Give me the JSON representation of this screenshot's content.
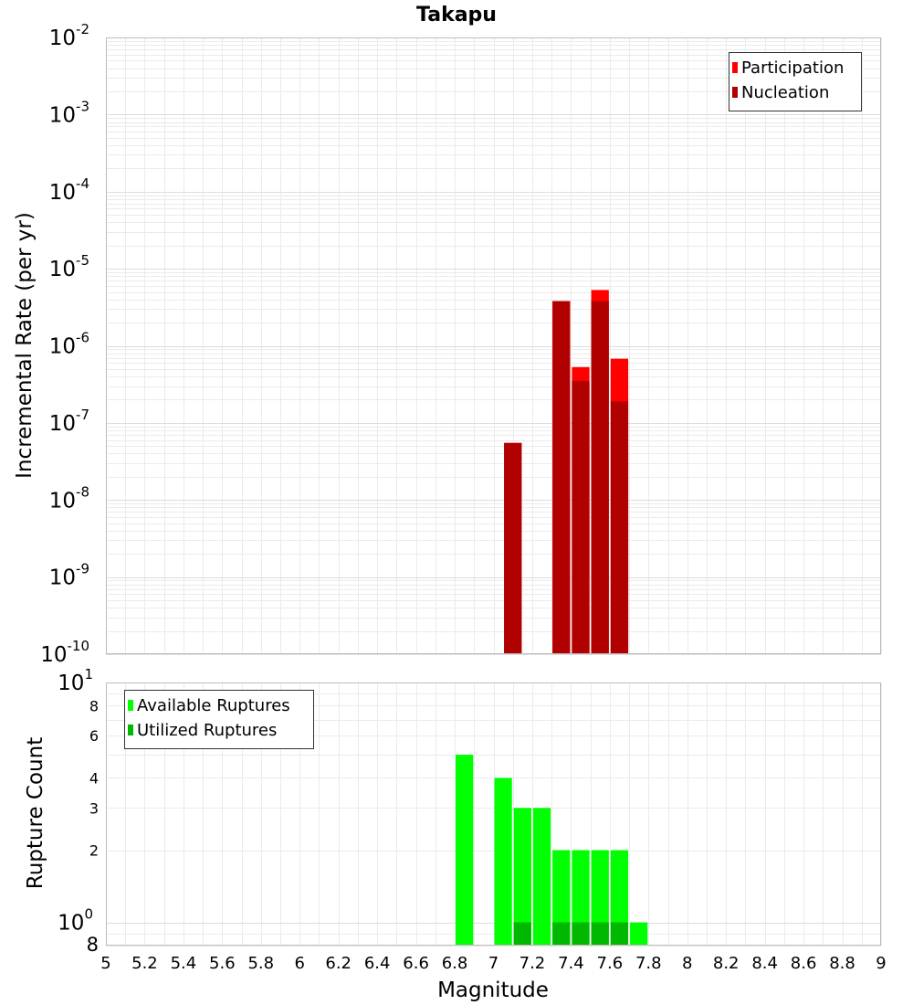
{
  "chart_data": {
    "type": "bar",
    "title": "Takapu",
    "xlabel": "Magnitude",
    "x_ticks": [
      "5",
      "5.2",
      "5.4",
      "5.6",
      "5.8",
      "6",
      "6.2",
      "6.4",
      "6.6",
      "6.8",
      "7",
      "7.2",
      "7.4",
      "7.6",
      "7.8",
      "8",
      "8.2",
      "8.4",
      "8.6",
      "8.8",
      "9"
    ],
    "xlim": [
      5,
      9
    ],
    "bin_width": 0.1,
    "panels": [
      {
        "ylabel": "Incremental Rate (per yr)",
        "yscale": "log",
        "ylim": [
          1e-10,
          0.01
        ],
        "y_tick_mantissa": [
          "10",
          "10",
          "10",
          "10",
          "10",
          "10",
          "10",
          "10",
          "10"
        ],
        "y_tick_exponent": [
          "-2",
          "-3",
          "-4",
          "-5",
          "-6",
          "-7",
          "-8",
          "-9",
          "-10"
        ],
        "grid": true,
        "legend_position": "top-right",
        "series": [
          {
            "name": "Participation",
            "color": "#ff0000",
            "points": [
              {
                "x": 7.1,
                "y": 5.5e-08
              },
              {
                "x": 7.35,
                "y": 3.8e-06
              },
              {
                "x": 7.45,
                "y": 5.3e-07
              },
              {
                "x": 7.55,
                "y": 5.3e-06
              },
              {
                "x": 7.65,
                "y": 6.8e-07
              }
            ]
          },
          {
            "name": "Nucleation",
            "color": "#b00000",
            "points": [
              {
                "x": 7.1,
                "y": 5.5e-08
              },
              {
                "x": 7.35,
                "y": 3.8e-06
              },
              {
                "x": 7.45,
                "y": 3.5e-07
              },
              {
                "x": 7.55,
                "y": 3.8e-06
              },
              {
                "x": 7.65,
                "y": 1.9e-07
              }
            ]
          }
        ]
      },
      {
        "ylabel": "Rupture Count",
        "yscale": "log",
        "ylim": [
          0.8,
          10
        ],
        "y_ticks": [
          {
            "value": 10,
            "mantissa": "10",
            "exponent": "1"
          },
          {
            "value": 8,
            "mantissa": "8",
            "exponent": ""
          },
          {
            "value": 6,
            "mantissa": "6",
            "exponent": ""
          },
          {
            "value": 4,
            "mantissa": "4",
            "exponent": ""
          },
          {
            "value": 3,
            "mantissa": "3",
            "exponent": ""
          },
          {
            "value": 2,
            "mantissa": "2",
            "exponent": ""
          },
          {
            "value": 1,
            "mantissa": "10",
            "exponent": "0"
          },
          {
            "value": 0.8,
            "mantissa": "8",
            "exponent": ""
          }
        ],
        "grid": true,
        "legend_position": "top-left",
        "series": [
          {
            "name": "Available Ruptures",
            "color": "#00ff00",
            "points": [
              {
                "x": 6.85,
                "y": 5
              },
              {
                "x": 7.05,
                "y": 4
              },
              {
                "x": 7.15,
                "y": 3
              },
              {
                "x": 7.25,
                "y": 3
              },
              {
                "x": 7.35,
                "y": 2
              },
              {
                "x": 7.45,
                "y": 2
              },
              {
                "x": 7.55,
                "y": 2
              },
              {
                "x": 7.65,
                "y": 2
              },
              {
                "x": 7.75,
                "y": 1
              }
            ]
          },
          {
            "name": "Utilized Ruptures",
            "color": "#00b800",
            "points": [
              {
                "x": 7.15,
                "y": 1
              },
              {
                "x": 7.35,
                "y": 1
              },
              {
                "x": 7.45,
                "y": 1
              },
              {
                "x": 7.55,
                "y": 1
              },
              {
                "x": 7.65,
                "y": 1
              }
            ]
          }
        ]
      }
    ]
  }
}
